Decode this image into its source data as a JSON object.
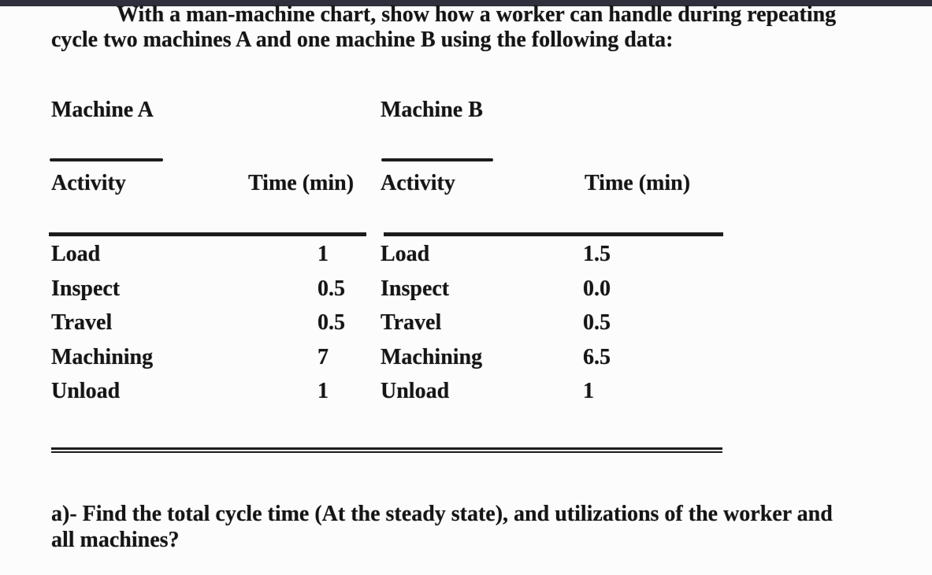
{
  "intro": {
    "lines": [
      "With a man-machine chart, show how a worker can handle during repeating",
      "cycle two machines A and one machine B using the following data:"
    ]
  },
  "machine_a": {
    "title": "Machine A",
    "activity_header": "Activity",
    "time_header": "Time (min)",
    "rows": [
      {
        "activity": "Load",
        "time": "1"
      },
      {
        "activity": "Inspect",
        "time": "0.5"
      },
      {
        "activity": "Travel",
        "time": "0.5"
      },
      {
        "activity": "Machining",
        "time": "7"
      },
      {
        "activity": "Unload",
        "time": "1"
      }
    ]
  },
  "machine_b": {
    "title": "Machine B",
    "activity_header": "Activity",
    "time_header": "Time (min)",
    "rows": [
      {
        "activity": "Load",
        "time": "1.5"
      },
      {
        "activity": "Inspect",
        "time": "0.0"
      },
      {
        "activity": "Travel",
        "time": "0.5"
      },
      {
        "activity": "Machining",
        "time": "6.5"
      },
      {
        "activity": "Unload",
        "time": "1"
      }
    ]
  },
  "question": {
    "lines": [
      "a)- Find the total cycle time (At the steady state), and utilizations of the worker and",
      "all machines?"
    ]
  },
  "colors": {
    "scan_edge": "#30303c",
    "text": "#151515",
    "rule": "#1c1c1c",
    "background": "#fcfcfc"
  }
}
